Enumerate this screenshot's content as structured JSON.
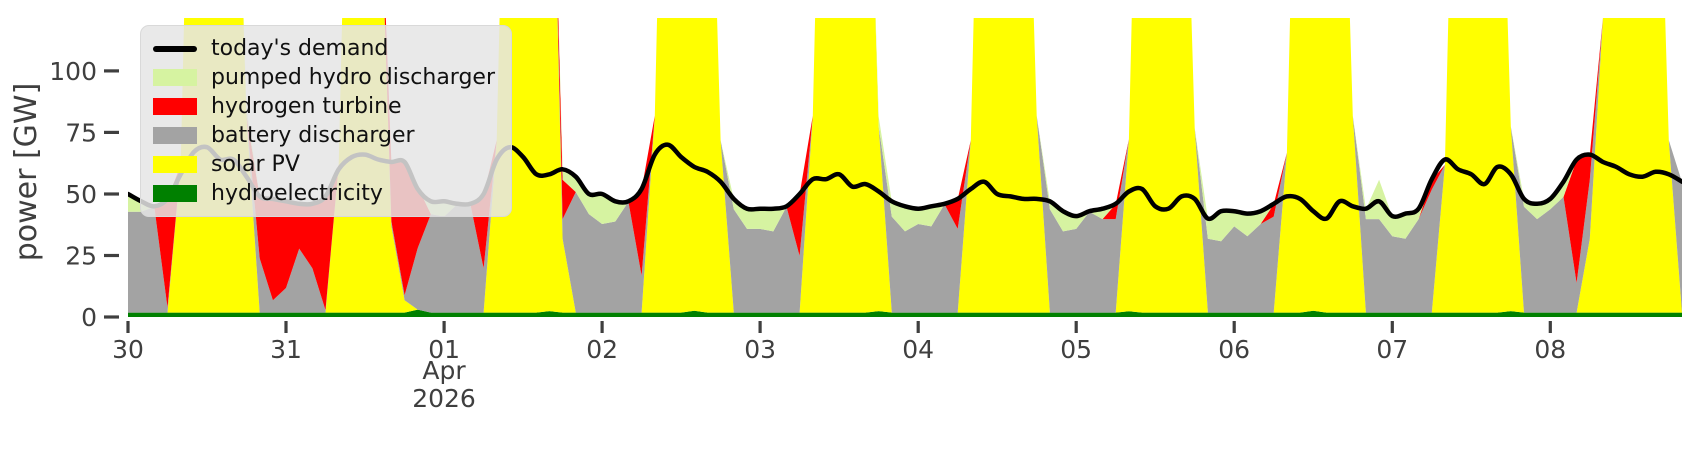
{
  "figure": {
    "kind": "energy dispatch time-series",
    "background": "#ffffff"
  },
  "axes": {
    "ylabel": "power [GW]",
    "yticks": [
      0,
      25,
      50,
      75,
      100
    ],
    "yticklabels": [
      "0",
      "25",
      "50",
      "75",
      "100"
    ],
    "xticklabels": [
      "30",
      "31",
      "01",
      "02",
      "03",
      "04",
      "05",
      "06",
      "07",
      "08"
    ],
    "month_label": "Apr",
    "year_label": "2026",
    "tick_color": "#3f3f3f"
  },
  "legend": {
    "items": [
      {
        "label": "today's demand",
        "color": "#000000",
        "swatch": "line"
      },
      {
        "label": "pumped hydro discharger",
        "color": "#d6f3a1",
        "swatch": "patch"
      },
      {
        "label": "hydrogen turbine",
        "color": "#ff0000",
        "swatch": "patch"
      },
      {
        "label": "battery discharger",
        "color": "#a3a3a3",
        "swatch": "patch"
      },
      {
        "label": "solar PV",
        "color": "#ffff00",
        "swatch": "patch"
      },
      {
        "label": "hydroelectricity",
        "color": "#008000",
        "swatch": "patch"
      }
    ]
  },
  "chart_data": {
    "type": "area",
    "note": "stacked area dispatch plot with demand line on top; x is hours from 2026-03-30 00:00, 2-hour resolution",
    "x": {
      "start_hour": 0,
      "step_hours": 2,
      "count": 119,
      "day_tick_hours": [
        0,
        24,
        48,
        72,
        96,
        120,
        144,
        168,
        192,
        216
      ]
    },
    "xlabel": "",
    "ylabel": "power [GW]",
    "ylim": [
      0,
      121.5
    ],
    "grid": false,
    "legend_position": "upper left",
    "stack_order": [
      "hydroelectricity",
      "solar PV",
      "battery discharger",
      "hydrogen turbine",
      "pumped hydro discharger"
    ],
    "series": [
      {
        "name": "hydroelectricity",
        "color": "#008000",
        "values": [
          1.8,
          1.8,
          1.8,
          1.8,
          1.8,
          1.8,
          1.8,
          1.8,
          1.8,
          1.8,
          1.8,
          1.8,
          1.8,
          1.8,
          1.8,
          1.8,
          1.8,
          1.8,
          1.8,
          1.8,
          1.8,
          1.8,
          3,
          1.8,
          1.8,
          1.8,
          1.8,
          1.8,
          1.8,
          1.8,
          1.8,
          1.8,
          2.4,
          1.8,
          1.8,
          1.8,
          1.8,
          1.8,
          1.8,
          1.8,
          1.8,
          1.8,
          1.8,
          2.5,
          1.8,
          1.8,
          1.8,
          1.8,
          1.8,
          1.8,
          1.8,
          1.8,
          1.8,
          1.8,
          1.8,
          1.8,
          1.8,
          2.4,
          1.8,
          1.8,
          1.8,
          1.8,
          1.8,
          1.8,
          1.8,
          1.8,
          1.8,
          1.8,
          1.8,
          1.8,
          1.8,
          1.8,
          1.8,
          1.8,
          1.8,
          1.8,
          2.3,
          1.8,
          1.8,
          1.8,
          1.8,
          1.8,
          1.8,
          1.8,
          1.8,
          1.8,
          1.8,
          1.8,
          1.8,
          1.8,
          2.5,
          1.8,
          1.8,
          1.8,
          1.8,
          1.8,
          1.8,
          1.8,
          1.8,
          1.8,
          1.8,
          1.8,
          1.8,
          1.8,
          1.8,
          2.4,
          1.8,
          1.8,
          1.8,
          1.8,
          1.8,
          1.8,
          1.8,
          1.8,
          1.8,
          1.8,
          1.8,
          1.8,
          1.8
        ]
      },
      {
        "name": "solar PV",
        "color": "#ffff00",
        "values": [
          0,
          0,
          0,
          0,
          60,
          290,
          335,
          330,
          250,
          80,
          0,
          0,
          0,
          0,
          0,
          0,
          60,
          290,
          330,
          200,
          35,
          5,
          0,
          0,
          0,
          0,
          0,
          0,
          70,
          300,
          340,
          330,
          260,
          30,
          0,
          0,
          0,
          0,
          0,
          0,
          80,
          310,
          345,
          335,
          255,
          70,
          0,
          0,
          0,
          0,
          0,
          0,
          80,
          310,
          345,
          335,
          255,
          75,
          0,
          0,
          0,
          0,
          0,
          0,
          70,
          300,
          340,
          330,
          260,
          80,
          0,
          0,
          0,
          0,
          0,
          0,
          70,
          300,
          340,
          330,
          255,
          75,
          0,
          0,
          0,
          0,
          0,
          0,
          65,
          295,
          340,
          335,
          260,
          80,
          0,
          0,
          0,
          0,
          0,
          0,
          60,
          290,
          335,
          330,
          255,
          75,
          0,
          0,
          0,
          0,
          0,
          30,
          120,
          300,
          340,
          330,
          250,
          70,
          0
        ]
      },
      {
        "name": "battery discharger",
        "color": "#a3a3a3",
        "values": [
          41,
          41,
          43,
          2,
          0,
          0,
          0,
          0,
          0,
          0,
          22,
          5,
          10,
          26,
          18,
          1,
          0,
          0,
          0,
          0,
          2,
          2,
          25,
          40,
          39,
          44,
          44,
          18,
          0,
          0,
          0,
          0,
          0,
          8,
          49,
          40,
          36,
          37,
          45,
          15,
          0,
          0,
          0,
          0,
          0,
          0,
          42,
          34,
          34,
          33,
          43,
          23,
          0,
          0,
          0,
          0,
          0,
          0,
          39,
          33,
          36,
          35,
          44,
          34,
          0,
          0,
          0,
          0,
          0,
          0,
          42,
          33,
          34,
          41,
          38,
          38,
          0,
          0,
          0,
          0,
          0,
          0,
          30,
          29,
          35,
          31,
          36,
          39,
          0,
          0,
          0,
          0,
          0,
          0,
          38,
          38,
          31,
          30,
          38,
          50,
          0,
          0,
          0,
          0,
          0,
          0,
          43,
          38,
          42,
          47,
          12,
          24,
          0,
          0,
          0,
          0,
          0,
          0,
          53
        ]
      },
      {
        "name": "hydrogen turbine",
        "color": "#ff0000",
        "values": [
          0,
          0,
          0,
          44,
          0,
          0,
          0,
          0,
          0,
          0,
          25,
          41,
          35,
          18,
          26,
          46,
          0,
          0,
          0,
          0,
          24,
          54,
          25,
          0,
          0,
          0,
          0,
          30,
          0,
          0,
          0,
          0,
          0,
          16,
          0,
          0,
          0,
          0,
          0,
          35,
          0,
          0,
          0,
          0,
          0,
          0,
          0,
          0,
          0,
          0,
          0,
          25,
          0,
          0,
          0,
          0,
          0,
          0,
          0,
          0,
          0,
          0,
          0,
          12,
          0,
          0,
          0,
          0,
          0,
          0,
          0,
          0,
          0,
          0,
          0,
          6,
          0,
          0,
          0,
          0,
          0,
          0,
          0,
          0,
          0,
          0,
          0,
          5,
          0,
          0,
          0,
          0,
          0,
          0,
          0,
          0,
          0,
          0,
          0,
          4,
          0,
          0,
          0,
          0,
          0,
          0,
          0,
          0,
          0,
          0,
          50,
          10,
          0,
          0,
          0,
          0,
          0,
          0,
          0
        ]
      },
      {
        "name": "pumped hydro discharger",
        "color": "#d6f3a1",
        "values": [
          7,
          4,
          0,
          0,
          0,
          0,
          0,
          0,
          0,
          3,
          0,
          0,
          0,
          0,
          0,
          0,
          0,
          0,
          0,
          0,
          0,
          0,
          0,
          5,
          6,
          0,
          0,
          0,
          0,
          0,
          0,
          0,
          0,
          4,
          6,
          8,
          12,
          8,
          0,
          0,
          0,
          0,
          0,
          0,
          0,
          0,
          4,
          8,
          8,
          9,
          0,
          0,
          0,
          0,
          0,
          0,
          0,
          4,
          6,
          10,
          6,
          8,
          0,
          0,
          0,
          0,
          0,
          0,
          0,
          0,
          3,
          8,
          5,
          0,
          4,
          0,
          0,
          0,
          0,
          0,
          0,
          0,
          8,
          12,
          6,
          9,
          5,
          0,
          0,
          0,
          0,
          0,
          0,
          0,
          4,
          16,
          8,
          10,
          4,
          0,
          0,
          0,
          0,
          0,
          0,
          0,
          3,
          6,
          4,
          6,
          0,
          0,
          0,
          0,
          0,
          0,
          0,
          0,
          0
        ]
      }
    ],
    "demand_line": {
      "name": "today's demand",
      "color": "#000000",
      "width": 4.5,
      "values": [
        50,
        47,
        45,
        48,
        58,
        67,
        69,
        64,
        64,
        57,
        49,
        48,
        47,
        46,
        46,
        49,
        60,
        65,
        66,
        64,
        63,
        63,
        52,
        47,
        47,
        46,
        46,
        50,
        64,
        69,
        65,
        58,
        58,
        60,
        57,
        50,
        50,
        47,
        47,
        52,
        66,
        70,
        65,
        61,
        59,
        55,
        48,
        44,
        44,
        44,
        45,
        50,
        56,
        56,
        58,
        53,
        54,
        51,
        47,
        45,
        44,
        45,
        46,
        48,
        52,
        55,
        50,
        49,
        48,
        48,
        47,
        43,
        41,
        43,
        44,
        46,
        51,
        52,
        45,
        44,
        49,
        48,
        40,
        43,
        43,
        42,
        43,
        46,
        49,
        48,
        43,
        40,
        47,
        45,
        44,
        47,
        41,
        42,
        44,
        56,
        64,
        60,
        58,
        54,
        61,
        58,
        48,
        46,
        48,
        55,
        64,
        66,
        63,
        61,
        58,
        57,
        59,
        58,
        55
      ]
    }
  }
}
